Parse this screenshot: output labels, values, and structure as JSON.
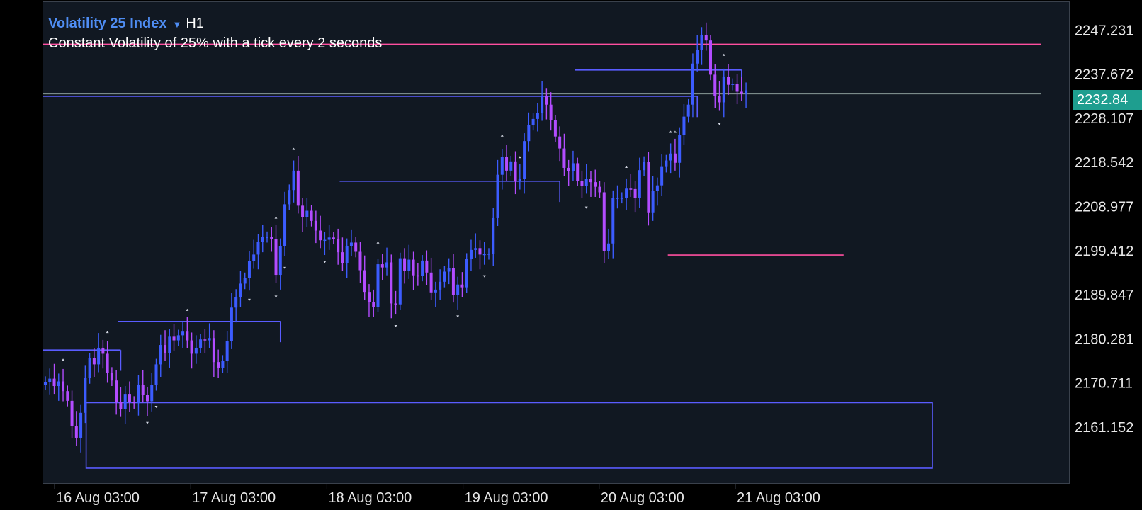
{
  "header": {
    "symbol": "Volatility 25 Index",
    "timeframe": "H1",
    "description": "Constant Volatility of 25% with a tick every 2 seconds"
  },
  "current_price": "2232.84",
  "colors": {
    "background": "#111822",
    "bull_candle": "#3c5cff",
    "bear_candle": "#b34cff",
    "zone_line": "#5a5cff",
    "resistance_line": "#ff4fa0",
    "price_line": "#8a9a98",
    "price_tag": "#1e9e8f",
    "axis_text": "#e8e8e8"
  },
  "chart_data": {
    "type": "candlestick",
    "timeframe": "H1",
    "y_ticks": [
      "2247.231",
      "2237.672",
      "2228.107",
      "2218.542",
      "2208.977",
      "2199.412",
      "2189.847",
      "2180.281",
      "2170.711",
      "2161.152"
    ],
    "x_ticks": [
      "16 Aug 03:00",
      "17 Aug 03:00",
      "18 Aug 03:00",
      "19 Aug 03:00",
      "20 Aug 03:00",
      "21 Aug 03:00"
    ],
    "ylim": [
      2147.0,
      2252.0
    ],
    "current_price": 2232.84,
    "closes": [
      2170.8,
      2171.5,
      2169.9,
      2170.9,
      2168.8,
      2166.7,
      2161.3,
      2158.7,
      2164.1,
      2171.6,
      2175.9,
      2174.6,
      2178.2,
      2176.9,
      2172.8,
      2171.1,
      2166.4,
      2164.9,
      2168.2,
      2166.5,
      2166.2,
      2170.1,
      2168.0,
      2166.6,
      2170.1,
      2174.6,
      2178.8,
      2177.1,
      2180.6,
      2179.8,
      2180.9,
      2181.7,
      2179.8,
      2176.9,
      2178.2,
      2180.0,
      2179.8,
      2180.3,
      2175.1,
      2173.9,
      2175.4,
      2179.6,
      2186.9,
      2189.2,
      2192.1,
      2193.3,
      2197.0,
      2198.4,
      2201.1,
      2202.2,
      2202.2,
      2201.7,
      2194.0,
      2200.2,
      2209.3,
      2212.4,
      2216.6,
      2209.0,
      2206.5,
      2207.9,
      2205.7,
      2203.6,
      2201.5,
      2201.6,
      2202.1,
      2201.8,
      2198.9,
      2196.5,
      2200.2,
      2201.0,
      2199.0,
      2195.0,
      2190.3,
      2188.1,
      2187.1,
      2196.3,
      2195.6,
      2196.7,
      2187.8,
      2187.6,
      2197.6,
      2194.8,
      2197.3,
      2193.9,
      2193.8,
      2197.1,
      2194.5,
      2190.2,
      2190.8,
      2192.5,
      2194.7,
      2195.4,
      2189.7,
      2191.9,
      2191.3,
      2197.5,
      2199.4,
      2199.8,
      2198.4,
      2198.5,
      2198.6,
      2206.3,
      2215.7,
      2219.5,
      2216.6,
      2218.6,
      2214.2,
      2214.8,
      2223.0,
      2226.5,
      2227.8,
      2229.1,
      2232.8,
      2230.9,
      2227.5,
      2224.0,
      2221.4,
      2217.2,
      2216.5,
      2218.2,
      2214.4,
      2213.3,
      2214.8,
      2214.1,
      2213.1,
      2211.9,
      2199.2,
      2200.8,
      2210.6,
      2210.7,
      2210.7,
      2212.7,
      2212.6,
      2210.7,
      2216.7,
      2218.5,
      2207.4,
      2212.2,
      2213.4,
      2217.4,
      2218.8,
      2220.3,
      2218.3,
      2224.3,
      2228.3,
      2230.9,
      2239.8,
      2242.7,
      2246.0,
      2244.8,
      2237.4,
      2232.8,
      2231.4,
      2237.0,
      2235.2,
      2235.4,
      2233.7,
      2233.4,
      2234.0
    ],
    "levels": [
      {
        "kind": "horizontal",
        "price": 2244.0,
        "from_index": 0,
        "to_index": "end",
        "color": "resistance"
      },
      {
        "kind": "horizontal",
        "price": 2233.3,
        "from_index": 0,
        "to_index": "end",
        "color": "price"
      },
      {
        "kind": "horizontal",
        "price": 2232.7,
        "from_index": 0,
        "to_index": 147,
        "color": "zone"
      },
      {
        "kind": "horizontal",
        "price": 2238.4,
        "from_index": 120,
        "to_index": 157,
        "color": "zone"
      },
      {
        "kind": "horizontal",
        "price": 2214.3,
        "from_index": 67,
        "to_index": 116,
        "color": "zone"
      },
      {
        "kind": "horizontal",
        "price": 2183.9,
        "from_index": 17,
        "to_index": 53,
        "color": "zone"
      },
      {
        "kind": "horizontal",
        "price": 2177.7,
        "from_index": 0,
        "to_index": 17,
        "color": "zone"
      },
      {
        "kind": "horizontal",
        "price": 2198.3,
        "from_index": 141,
        "to_index": 180,
        "color": "resistance"
      }
    ],
    "zone_box": {
      "top": 2166.3,
      "bottom": 2152.1,
      "from_index": 10,
      "to_index": 200
    },
    "fractals_up": [
      4,
      14,
      32,
      52,
      56,
      75,
      103,
      107,
      131,
      141,
      142,
      153,
      160,
      164
    ],
    "fractals_down": [
      23,
      25,
      46,
      52,
      54,
      63,
      79,
      93,
      99,
      122,
      152,
      167,
      173
    ]
  }
}
